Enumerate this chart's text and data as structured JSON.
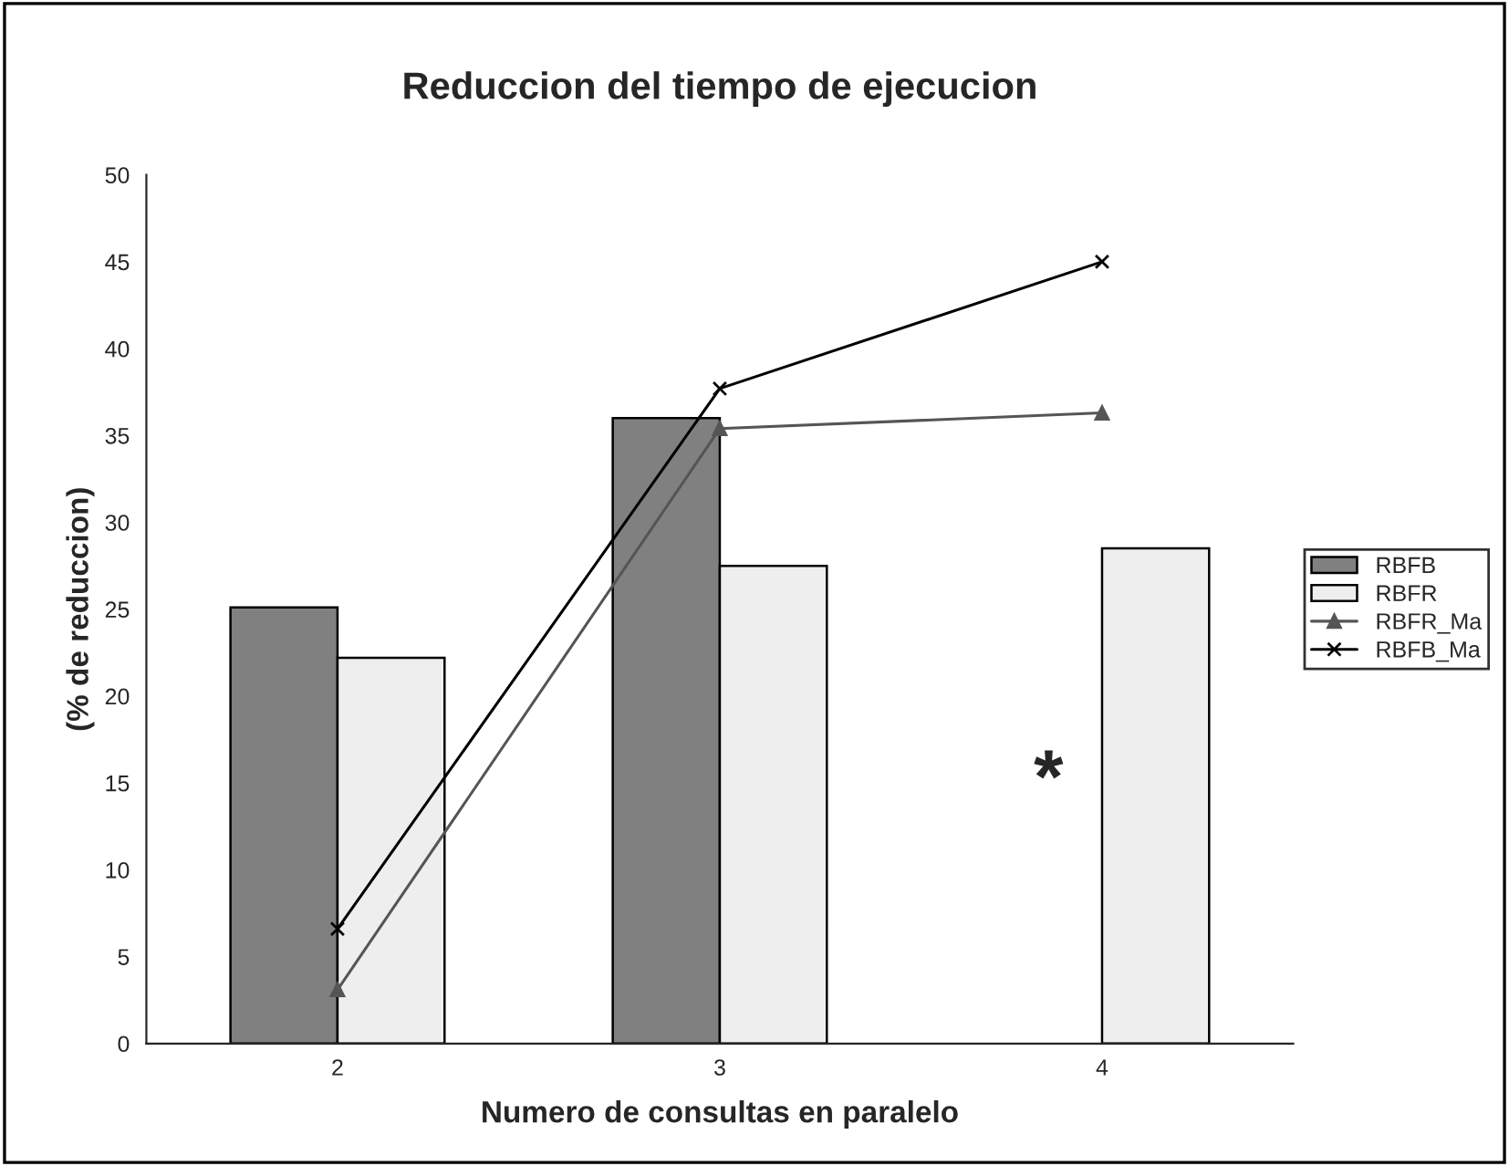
{
  "chart_data": {
    "type": "bar",
    "title": "Reduccion del tiempo de ejecucion",
    "xlabel": "Numero de consultas en paralelo",
    "ylabel": "(% de reduccion)",
    "categories": [
      "2",
      "3",
      "4"
    ],
    "series": [
      {
        "name": "RBFB",
        "color": "#808080",
        "values": [
          25.1,
          36.0,
          null
        ]
      },
      {
        "name": "RBFR",
        "color": "#eeeeee",
        "values": [
          22.2,
          27.5,
          28.5
        ]
      },
      {
        "name": "RBFR_Ma",
        "type": "line",
        "marker": "triangle",
        "color": "#555555",
        "values": [
          3.1,
          35.4,
          36.3
        ]
      },
      {
        "name": "RBFB_Ma",
        "type": "line",
        "marker": "cross",
        "color": "#000000",
        "values": [
          6.6,
          37.7,
          45.0
        ]
      }
    ],
    "ylim": [
      0,
      50
    ],
    "yticks": [
      0,
      5,
      10,
      15,
      20,
      25,
      30,
      35,
      40,
      45,
      50
    ],
    "annotations": [
      {
        "text": "*",
        "x": "4",
        "y": 15
      }
    ],
    "grid": false,
    "legend": "right"
  }
}
